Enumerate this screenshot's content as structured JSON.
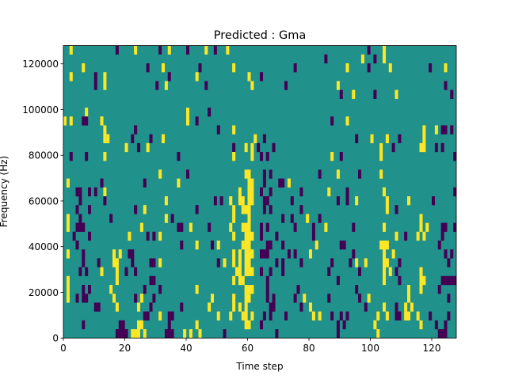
{
  "chart_data": {
    "type": "heatmap",
    "title": "Predicted : Gma",
    "xlabel": "Time step",
    "ylabel": "Frequency (Hz)",
    "xlim": [
      0,
      128
    ],
    "ylim": [
      0,
      128000
    ],
    "n_time_steps": 128,
    "n_freq_bins": 33,
    "xticks": [
      0,
      20,
      40,
      60,
      80,
      100,
      120
    ],
    "yticks": [
      0,
      20000,
      40000,
      60000,
      80000,
      100000,
      120000
    ],
    "xtick_labels": [
      "0",
      "20",
      "40",
      "60",
      "80",
      "100",
      "120"
    ],
    "ytick_labels": [
      "0",
      "20000",
      "40000",
      "60000",
      "80000",
      "100000",
      "120000"
    ],
    "colors": {
      "background": "#21918c",
      "high": "#fde725",
      "low": "#440154"
    },
    "value_legend": {
      "background": "teal (mid value)",
      "Y": "yellow (high value)",
      "P": "purple (low value)"
    },
    "rows_top_to_bottom": [
      {
        "Y": [
          2,
          23,
          34,
          46,
          53,
          104
        ],
        "P": [
          17,
          31,
          40,
          49,
          99
        ]
      },
      {
        "Y": [
          97,
          104
        ],
        "P": [
          85,
          101
        ]
      },
      {
        "Y": [
          6,
          32,
          55,
          92,
          106,
          124
        ],
        "P": [
          27,
          44,
          75,
          99,
          119
        ]
      },
      {
        "Y": [
          2,
          13,
          43,
          60
        ],
        "P": [
          10,
          34,
          64
        ]
      },
      {
        "Y": [
          13,
          33,
          61,
          89
        ],
        "P": [
          10,
          30,
          46,
          72,
          124
        ]
      },
      {
        "Y": [
          94,
          108
        ],
        "P": [
          90,
          101,
          126
        ]
      },
      {
        "Y": [],
        "P": []
      },
      {
        "Y": [
          7,
          40
        ],
        "P": [
          47
        ]
      },
      {
        "Y": [
          0,
          2,
          12,
          40,
          92
        ],
        "P": [
          6,
          7,
          43,
          87
        ]
      },
      {
        "Y": [
          13,
          55,
          117,
          121
        ],
        "P": [
          23,
          50,
          123,
          124,
          126
        ]
      },
      {
        "Y": [
          13,
          14,
          32,
          62,
          100,
          105,
          117
        ],
        "P": [
          22,
          28,
          65,
          95,
          109
        ]
      },
      {
        "Y": [
          20,
          27,
          59,
          61,
          103,
          116,
          117
        ],
        "P": [
          24,
          55,
          63,
          68,
          107,
          121,
          123
        ]
      },
      {
        "Y": [
          13,
          55,
          61,
          87,
          103
        ],
        "P": [
          2,
          7,
          37,
          64,
          66,
          90,
          127
        ]
      },
      {
        "Y": [],
        "P": []
      },
      {
        "Y": [
          31,
          59,
          60,
          89,
          103
        ],
        "P": [
          40,
          65,
          67,
          83,
          96
        ]
      },
      {
        "Y": [
          1,
          37,
          60,
          61,
          73
        ],
        "P": [
          12,
          26,
          65,
          70,
          71
        ]
      },
      {
        "Y": [
          13,
          57,
          60,
          61,
          86,
          104
        ],
        "P": [
          4,
          5,
          8,
          10,
          64,
          67,
          77,
          92,
          127
        ]
      },
      {
        "Y": [
          33,
          54,
          57,
          58,
          60,
          61,
          95,
          105,
          112
        ],
        "P": [
          5,
          13,
          49,
          51,
          65,
          66,
          74,
          89,
          92,
          120
        ]
      },
      {
        "Y": [
          26,
          55,
          58,
          59,
          60,
          105
        ],
        "P": [
          4,
          8,
          23,
          43,
          65,
          67,
          77,
          108
        ]
      },
      {
        "Y": [
          1,
          33,
          55,
          60,
          79,
          116
        ],
        "P": [
          5,
          15,
          35,
          71,
          74,
          83
        ]
      },
      {
        "Y": [
          1,
          25,
          41,
          54,
          58,
          59,
          60,
          85,
          104,
          116,
          118
        ],
        "P": [
          4,
          5,
          6,
          37,
          38,
          47,
          64,
          66,
          75,
          81,
          94,
          123,
          124,
          127
        ]
      },
      {
        "Y": [
          21,
          31,
          55,
          59,
          60,
          61,
          108,
          115,
          117
        ],
        "P": [
          3,
          8,
          27,
          29,
          64,
          69,
          81,
          111,
          123
        ]
      },
      {
        "Y": [
          43,
          50,
          58,
          59,
          60,
          82,
          103,
          104,
          105
        ],
        "P": [
          4,
          38,
          48,
          66,
          67,
          71,
          90,
          91,
          122
        ]
      },
      {
        "Y": [
          1,
          16,
          18,
          55,
          57,
          59,
          60,
          61,
          80,
          104,
          107
        ],
        "P": [
          6,
          21,
          22,
          64,
          65,
          66,
          73,
          75,
          94,
          124,
          126
        ]
      },
      {
        "Y": [
          16,
          17,
          31,
          52,
          55,
          57,
          59,
          60,
          95,
          98,
          104,
          105
        ],
        "P": [
          6,
          11,
          22,
          28,
          29,
          50,
          69,
          71,
          77,
          87,
          93,
          109,
          125
        ]
      },
      {
        "Y": [
          12,
          17,
          56,
          57,
          59,
          60,
          61,
          104,
          106,
          116
        ],
        "P": [
          5,
          7,
          20,
          23,
          64,
          67,
          71,
          86,
          96,
          108
        ]
      },
      {
        "Y": [
          1,
          17,
          55,
          57,
          58,
          104,
          116,
          117
        ],
        "P": [
          28,
          29,
          66,
          89,
          109,
          123,
          124,
          125,
          126,
          127
        ]
      },
      {
        "Y": [
          1,
          15,
          43,
          59,
          60,
          61,
          112,
          116
        ],
        "P": [
          6,
          8,
          26,
          31,
          66,
          76,
          95,
          122
        ]
      },
      {
        "Y": [
          1,
          16,
          25,
          48,
          55,
          59,
          60,
          78,
          99,
          112
        ],
        "P": [
          4,
          6,
          7,
          23,
          29,
          66,
          68,
          75,
          86,
          96,
          125
        ]
      },
      {
        "Y": [
          17,
          24,
          47,
          55,
          57,
          59,
          80,
          104,
          111,
          113
        ],
        "P": [
          10,
          11,
          28,
          38,
          67,
          68,
          77,
          98,
          108
        ]
      },
      {
        "Y": [
          31,
          50,
          54,
          58,
          59,
          61,
          81,
          83,
          102,
          105,
          111,
          112,
          115
        ],
        "P": [
          26,
          27,
          34,
          35,
          65,
          67,
          72,
          87,
          90,
          92,
          108,
          109,
          119,
          125
        ]
      },
      {
        "Y": [
          24,
          25,
          43,
          59,
          60,
          101,
          116
        ],
        "P": [
          6,
          18,
          19,
          34,
          64,
          89,
          91,
          121,
          124
        ]
      },
      {
        "Y": [
          22,
          23,
          24,
          26,
          39,
          41,
          44,
          102
        ],
        "P": [
          17,
          18,
          19,
          20,
          33,
          34,
          35,
          52,
          69,
          89,
          122,
          123,
          124
        ]
      }
    ]
  }
}
